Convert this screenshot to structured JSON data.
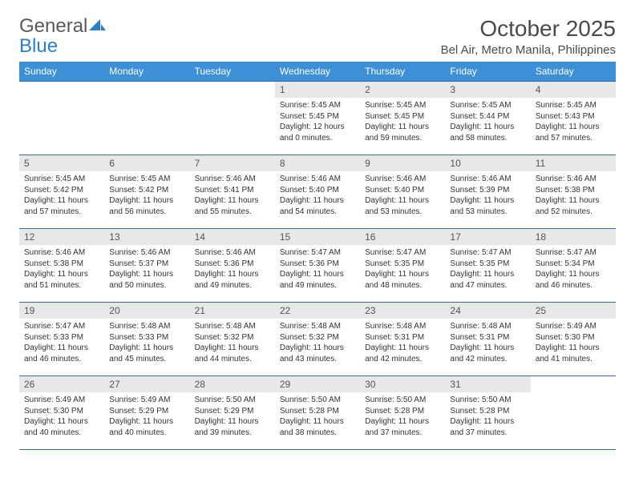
{
  "logo": {
    "line1": "General",
    "line2": "Blue"
  },
  "title": "October 2025",
  "location": "Bel Air, Metro Manila, Philippines",
  "colors": {
    "header_bg": "#3d8fd6",
    "header_text": "#ffffff",
    "daynum_bg": "#e8e8e8",
    "border": "#2c6ea8",
    "logo_gray": "#5a5a5a",
    "logo_blue": "#2a7fc9"
  },
  "day_headers": [
    "Sunday",
    "Monday",
    "Tuesday",
    "Wednesday",
    "Thursday",
    "Friday",
    "Saturday"
  ],
  "weeks": [
    [
      {
        "empty": true
      },
      {
        "empty": true
      },
      {
        "empty": true
      },
      {
        "num": "1",
        "sunrise": "Sunrise: 5:45 AM",
        "sunset": "Sunset: 5:45 PM",
        "daylight1": "Daylight: 12 hours",
        "daylight2": "and 0 minutes."
      },
      {
        "num": "2",
        "sunrise": "Sunrise: 5:45 AM",
        "sunset": "Sunset: 5:45 PM",
        "daylight1": "Daylight: 11 hours",
        "daylight2": "and 59 minutes."
      },
      {
        "num": "3",
        "sunrise": "Sunrise: 5:45 AM",
        "sunset": "Sunset: 5:44 PM",
        "daylight1": "Daylight: 11 hours",
        "daylight2": "and 58 minutes."
      },
      {
        "num": "4",
        "sunrise": "Sunrise: 5:45 AM",
        "sunset": "Sunset: 5:43 PM",
        "daylight1": "Daylight: 11 hours",
        "daylight2": "and 57 minutes."
      }
    ],
    [
      {
        "num": "5",
        "sunrise": "Sunrise: 5:45 AM",
        "sunset": "Sunset: 5:42 PM",
        "daylight1": "Daylight: 11 hours",
        "daylight2": "and 57 minutes."
      },
      {
        "num": "6",
        "sunrise": "Sunrise: 5:45 AM",
        "sunset": "Sunset: 5:42 PM",
        "daylight1": "Daylight: 11 hours",
        "daylight2": "and 56 minutes."
      },
      {
        "num": "7",
        "sunrise": "Sunrise: 5:46 AM",
        "sunset": "Sunset: 5:41 PM",
        "daylight1": "Daylight: 11 hours",
        "daylight2": "and 55 minutes."
      },
      {
        "num": "8",
        "sunrise": "Sunrise: 5:46 AM",
        "sunset": "Sunset: 5:40 PM",
        "daylight1": "Daylight: 11 hours",
        "daylight2": "and 54 minutes."
      },
      {
        "num": "9",
        "sunrise": "Sunrise: 5:46 AM",
        "sunset": "Sunset: 5:40 PM",
        "daylight1": "Daylight: 11 hours",
        "daylight2": "and 53 minutes."
      },
      {
        "num": "10",
        "sunrise": "Sunrise: 5:46 AM",
        "sunset": "Sunset: 5:39 PM",
        "daylight1": "Daylight: 11 hours",
        "daylight2": "and 53 minutes."
      },
      {
        "num": "11",
        "sunrise": "Sunrise: 5:46 AM",
        "sunset": "Sunset: 5:38 PM",
        "daylight1": "Daylight: 11 hours",
        "daylight2": "and 52 minutes."
      }
    ],
    [
      {
        "num": "12",
        "sunrise": "Sunrise: 5:46 AM",
        "sunset": "Sunset: 5:38 PM",
        "daylight1": "Daylight: 11 hours",
        "daylight2": "and 51 minutes."
      },
      {
        "num": "13",
        "sunrise": "Sunrise: 5:46 AM",
        "sunset": "Sunset: 5:37 PM",
        "daylight1": "Daylight: 11 hours",
        "daylight2": "and 50 minutes."
      },
      {
        "num": "14",
        "sunrise": "Sunrise: 5:46 AM",
        "sunset": "Sunset: 5:36 PM",
        "daylight1": "Daylight: 11 hours",
        "daylight2": "and 49 minutes."
      },
      {
        "num": "15",
        "sunrise": "Sunrise: 5:47 AM",
        "sunset": "Sunset: 5:36 PM",
        "daylight1": "Daylight: 11 hours",
        "daylight2": "and 49 minutes."
      },
      {
        "num": "16",
        "sunrise": "Sunrise: 5:47 AM",
        "sunset": "Sunset: 5:35 PM",
        "daylight1": "Daylight: 11 hours",
        "daylight2": "and 48 minutes."
      },
      {
        "num": "17",
        "sunrise": "Sunrise: 5:47 AM",
        "sunset": "Sunset: 5:35 PM",
        "daylight1": "Daylight: 11 hours",
        "daylight2": "and 47 minutes."
      },
      {
        "num": "18",
        "sunrise": "Sunrise: 5:47 AM",
        "sunset": "Sunset: 5:34 PM",
        "daylight1": "Daylight: 11 hours",
        "daylight2": "and 46 minutes."
      }
    ],
    [
      {
        "num": "19",
        "sunrise": "Sunrise: 5:47 AM",
        "sunset": "Sunset: 5:33 PM",
        "daylight1": "Daylight: 11 hours",
        "daylight2": "and 46 minutes."
      },
      {
        "num": "20",
        "sunrise": "Sunrise: 5:48 AM",
        "sunset": "Sunset: 5:33 PM",
        "daylight1": "Daylight: 11 hours",
        "daylight2": "and 45 minutes."
      },
      {
        "num": "21",
        "sunrise": "Sunrise: 5:48 AM",
        "sunset": "Sunset: 5:32 PM",
        "daylight1": "Daylight: 11 hours",
        "daylight2": "and 44 minutes."
      },
      {
        "num": "22",
        "sunrise": "Sunrise: 5:48 AM",
        "sunset": "Sunset: 5:32 PM",
        "daylight1": "Daylight: 11 hours",
        "daylight2": "and 43 minutes."
      },
      {
        "num": "23",
        "sunrise": "Sunrise: 5:48 AM",
        "sunset": "Sunset: 5:31 PM",
        "daylight1": "Daylight: 11 hours",
        "daylight2": "and 42 minutes."
      },
      {
        "num": "24",
        "sunrise": "Sunrise: 5:48 AM",
        "sunset": "Sunset: 5:31 PM",
        "daylight1": "Daylight: 11 hours",
        "daylight2": "and 42 minutes."
      },
      {
        "num": "25",
        "sunrise": "Sunrise: 5:49 AM",
        "sunset": "Sunset: 5:30 PM",
        "daylight1": "Daylight: 11 hours",
        "daylight2": "and 41 minutes."
      }
    ],
    [
      {
        "num": "26",
        "sunrise": "Sunrise: 5:49 AM",
        "sunset": "Sunset: 5:30 PM",
        "daylight1": "Daylight: 11 hours",
        "daylight2": "and 40 minutes."
      },
      {
        "num": "27",
        "sunrise": "Sunrise: 5:49 AM",
        "sunset": "Sunset: 5:29 PM",
        "daylight1": "Daylight: 11 hours",
        "daylight2": "and 40 minutes."
      },
      {
        "num": "28",
        "sunrise": "Sunrise: 5:50 AM",
        "sunset": "Sunset: 5:29 PM",
        "daylight1": "Daylight: 11 hours",
        "daylight2": "and 39 minutes."
      },
      {
        "num": "29",
        "sunrise": "Sunrise: 5:50 AM",
        "sunset": "Sunset: 5:28 PM",
        "daylight1": "Daylight: 11 hours",
        "daylight2": "and 38 minutes."
      },
      {
        "num": "30",
        "sunrise": "Sunrise: 5:50 AM",
        "sunset": "Sunset: 5:28 PM",
        "daylight1": "Daylight: 11 hours",
        "daylight2": "and 37 minutes."
      },
      {
        "num": "31",
        "sunrise": "Sunrise: 5:50 AM",
        "sunset": "Sunset: 5:28 PM",
        "daylight1": "Daylight: 11 hours",
        "daylight2": "and 37 minutes."
      },
      {
        "empty": true
      }
    ]
  ]
}
